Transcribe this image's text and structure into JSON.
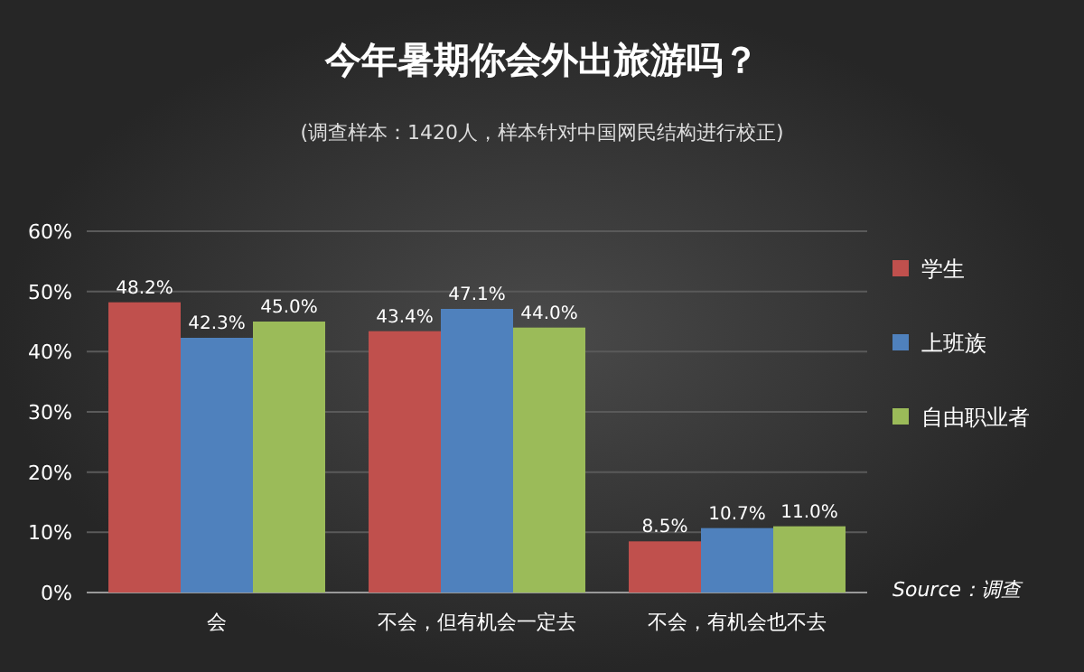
{
  "chart_data": {
    "type": "bar",
    "title": "今年暑期你会外出旅游吗？",
    "subtitle": "(调查样本：1420人，样本针对中国网民结构进行校正)",
    "categories": [
      "会",
      "不会，但有机会一定去",
      "不会，有机会也不去"
    ],
    "series": [
      {
        "name": "学生",
        "color": "#c0504d",
        "values": [
          48.2,
          43.4,
          8.5
        ],
        "value_labels": [
          "48.2%",
          "43.4%",
          "8.5%"
        ]
      },
      {
        "name": "上班族",
        "color": "#4f81bd",
        "values": [
          42.3,
          47.1,
          10.7
        ],
        "value_labels": [
          "42.3%",
          "47.1%",
          "10.7%"
        ]
      },
      {
        "name": "自由职业者",
        "color": "#9bbb59",
        "values": [
          45.0,
          44.0,
          11.0
        ],
        "value_labels": [
          "45.0%",
          "44.0%",
          "11.0%"
        ]
      }
    ],
    "ylim": [
      0,
      60
    ],
    "yticks": [
      {
        "value": 0,
        "label": "0%"
      },
      {
        "value": 10,
        "label": "10%"
      },
      {
        "value": 20,
        "label": "20%"
      },
      {
        "value": 30,
        "label": "30%"
      },
      {
        "value": 40,
        "label": "40%"
      },
      {
        "value": 50,
        "label": "50%"
      },
      {
        "value": 60,
        "label": "60%"
      }
    ],
    "grid": "y",
    "legend": "right",
    "annotations": [
      "Source：调查"
    ]
  }
}
